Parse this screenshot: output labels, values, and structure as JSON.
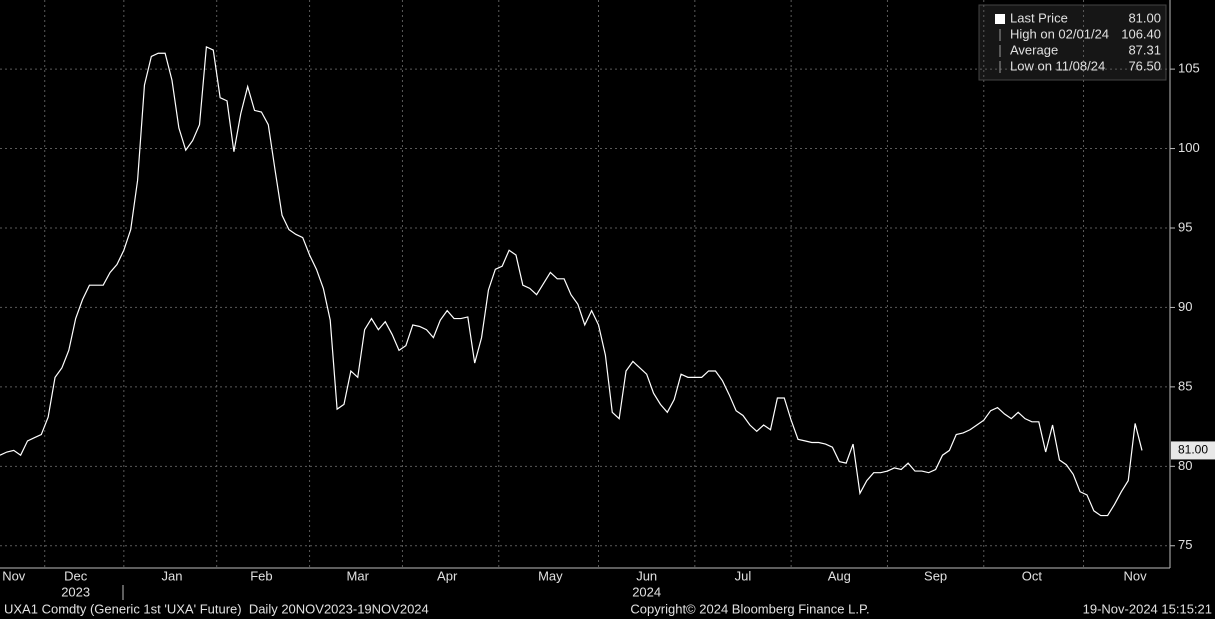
{
  "chart_data": {
    "type": "line",
    "categories": [
      null,
      null,
      "Nov",
      null,
      null,
      null,
      null,
      null,
      null,
      null,
      null,
      "Dec",
      null,
      null,
      null,
      null,
      null,
      null,
      null,
      null,
      null,
      null,
      null,
      null,
      null,
      "Jan",
      null,
      null,
      null,
      null,
      null,
      null,
      null,
      null,
      null,
      null,
      null,
      null,
      "Feb",
      null,
      null,
      null,
      null,
      null,
      null,
      null,
      null,
      null,
      null,
      null,
      null,
      null,
      "Mar",
      null,
      null,
      null,
      null,
      null,
      null,
      null,
      null,
      null,
      null,
      null,
      null,
      "Apr",
      null,
      null,
      null,
      null,
      null,
      null,
      null,
      null,
      null,
      null,
      null,
      null,
      null,
      null,
      "May",
      null,
      null,
      null,
      null,
      null,
      null,
      null,
      null,
      null,
      null,
      null,
      null,
      null,
      "Jun",
      null,
      null,
      null,
      null,
      null,
      null,
      null,
      null,
      null,
      null,
      null,
      null,
      null,
      "Jul",
      null,
      null,
      null,
      null,
      null,
      null,
      null,
      null,
      null,
      null,
      null,
      null,
      null,
      "Aug",
      null,
      null,
      null,
      null,
      null,
      null,
      null,
      null,
      null,
      null,
      null,
      null,
      null,
      "Sep",
      null,
      null,
      null,
      null,
      null,
      null,
      null,
      null,
      null,
      null,
      null,
      null,
      null,
      "Oct",
      null,
      null,
      null,
      null,
      null,
      null,
      null,
      null,
      null,
      null,
      null,
      null,
      null,
      null,
      "Nov",
      null
    ],
    "year_labels": [
      null,
      null,
      null,
      null,
      null,
      null,
      null,
      null,
      null,
      null,
      null,
      "2023",
      null,
      null,
      null,
      null,
      null,
      null,
      null,
      null,
      null,
      null,
      null,
      null,
      null,
      null,
      null,
      null,
      null,
      null,
      null,
      null,
      null,
      null,
      null,
      null,
      null,
      null,
      null,
      null,
      null,
      null,
      null,
      null,
      null,
      null,
      null,
      null,
      null,
      null,
      null,
      null,
      null,
      null,
      null,
      null,
      null,
      null,
      null,
      null,
      null,
      null,
      null,
      null,
      null,
      null,
      null,
      null,
      null,
      null,
      null,
      null,
      null,
      null,
      null,
      null,
      null,
      null,
      null,
      null,
      null,
      null,
      null,
      null,
      null,
      null,
      null,
      null,
      null,
      null,
      null,
      null,
      null,
      null,
      "2024",
      null,
      null,
      null,
      null,
      null,
      null,
      null,
      null,
      null,
      null,
      null,
      null,
      null,
      null,
      null,
      null,
      null,
      null,
      null,
      null,
      null,
      null,
      null,
      null,
      null,
      null,
      null,
      null,
      null,
      null,
      null,
      null,
      null,
      null,
      null,
      null,
      null,
      null,
      null,
      null,
      null,
      null,
      null,
      null,
      null,
      null,
      null,
      null,
      null,
      null,
      null,
      null,
      null,
      null,
      null,
      null,
      null,
      null,
      null,
      null,
      null,
      null,
      null,
      null,
      null,
      null,
      null,
      null,
      null,
      null,
      null,
      null
    ],
    "series": [
      {
        "name": "Last Price",
        "color": "#ffffff",
        "values": [
          80.7,
          80.9,
          81.0,
          80.7,
          81.6,
          81.8,
          82.0,
          83.1,
          85.6,
          86.2,
          87.3,
          89.3,
          90.5,
          91.4,
          91.4,
          91.4,
          92.2,
          92.7,
          93.6,
          94.9,
          98.0,
          104.0,
          105.8,
          106.0,
          106.0,
          104.3,
          101.3,
          99.9,
          100.5,
          101.5,
          106.4,
          106.2,
          103.2,
          103.0,
          99.8,
          102.2,
          103.9,
          102.4,
          102.3,
          101.5,
          98.6,
          95.8,
          94.9,
          94.6,
          94.4,
          93.3,
          92.4,
          91.2,
          89.2,
          83.6,
          83.9,
          86.0,
          85.6,
          88.6,
          89.3,
          88.6,
          89.1,
          88.3,
          87.3,
          87.6,
          88.9,
          88.8,
          88.6,
          88.1,
          89.2,
          89.8,
          89.3,
          89.3,
          89.4,
          86.5,
          88.1,
          91.1,
          92.4,
          92.6,
          93.6,
          93.3,
          91.4,
          91.2,
          90.8,
          91.5,
          92.2,
          91.8,
          91.8,
          90.8,
          90.2,
          88.9,
          89.8,
          88.9,
          87.0,
          83.4,
          83.0,
          86.0,
          86.6,
          86.2,
          85.8,
          84.6,
          83.9,
          83.4,
          84.2,
          85.8,
          85.6,
          85.6,
          85.6,
          86.0,
          86.0,
          85.4,
          84.5,
          83.5,
          83.2,
          82.6,
          82.2,
          82.6,
          82.3,
          84.3,
          84.3,
          82.9,
          81.7,
          81.6,
          81.5,
          81.5,
          81.4,
          81.2,
          80.3,
          80.2,
          81.4,
          78.3,
          79.1,
          79.6,
          79.6,
          79.7,
          79.9,
          79.8,
          80.2,
          79.7,
          79.7,
          79.6,
          79.8,
          80.7,
          81.0,
          82.0,
          82.1,
          82.3,
          82.6,
          82.9,
          83.5,
          83.7,
          83.3,
          83.0,
          83.4,
          83.0,
          82.8,
          82.8,
          80.9,
          82.6,
          80.4,
          80.1,
          79.5,
          78.4,
          78.2,
          77.2,
          76.9,
          76.9,
          77.6,
          78.4,
          79.1,
          82.7,
          81.0
        ]
      }
    ],
    "ylim": [
      73.6,
      109.35
    ],
    "yticks": [
      75,
      80,
      85,
      90,
      95,
      100,
      105
    ],
    "grid": true,
    "last_price_tag": "81.00",
    "legend_rows": [
      {
        "label": "Last Price",
        "value": "81.00"
      },
      {
        "label": "High on 02/01/24",
        "value": "106.40"
      },
      {
        "label": "Average",
        "value": "87.31"
      },
      {
        "label": "Low on 11/08/24",
        "value": "76.50"
      }
    ],
    "footer_left": "UXA1 Comdty (Generic 1st 'UXA' Future)  Daily 20NOV2023-19NOV2024",
    "footer_center": "Copyright© 2024 Bloomberg Finance L.P.",
    "footer_right": "19-Nov-2024 15:15:21"
  }
}
